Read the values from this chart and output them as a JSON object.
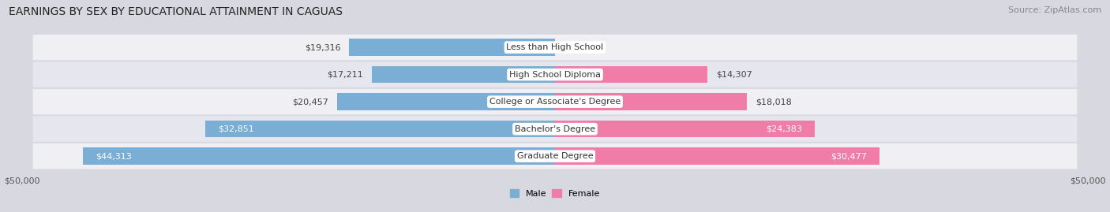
{
  "title": "EARNINGS BY SEX BY EDUCATIONAL ATTAINMENT IN CAGUAS",
  "source": "Source: ZipAtlas.com",
  "categories": [
    "Less than High School",
    "High School Diploma",
    "College or Associate's Degree",
    "Bachelor's Degree",
    "Graduate Degree"
  ],
  "male_values": [
    19316,
    17211,
    20457,
    32851,
    44313
  ],
  "female_values": [
    0,
    14307,
    18018,
    24383,
    30477
  ],
  "male_color": "#7aaed4",
  "female_color": "#f07ca8",
  "max_val": 50000,
  "row_color_odd": "#f0f0f4",
  "row_color_even": "#e6e6ee",
  "bg_color": "#d8d8e0",
  "xlabel_left": "$50,000",
  "xlabel_right": "$50,000",
  "legend_male": "Male",
  "legend_female": "Female",
  "title_fontsize": 10,
  "source_fontsize": 8,
  "label_fontsize": 8,
  "category_fontsize": 8
}
